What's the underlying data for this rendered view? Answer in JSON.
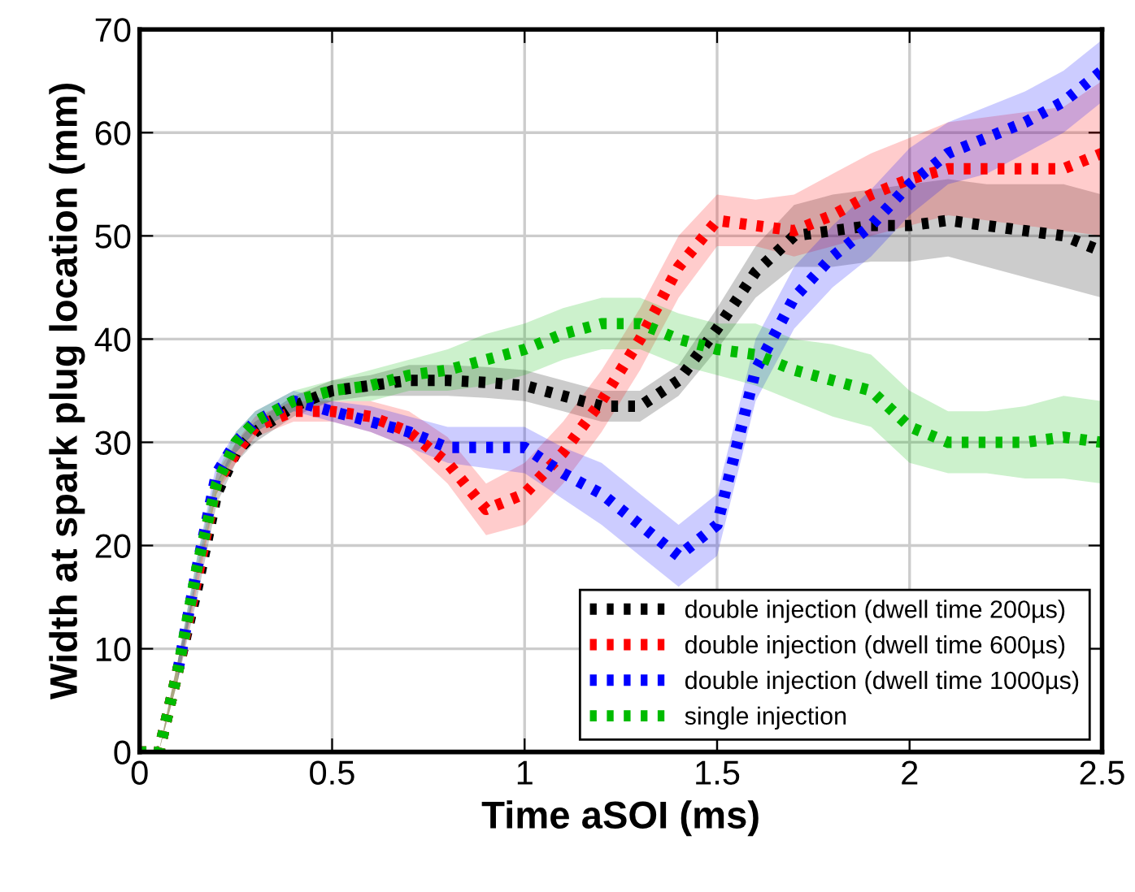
{
  "chart_data": {
    "type": "line",
    "xlabel": "Time aSOI (ms)",
    "ylabel": "Width at spark plug location (mm)",
    "x": [
      0,
      0.05,
      0.1,
      0.15,
      0.2,
      0.25,
      0.3,
      0.4,
      0.5,
      0.6,
      0.7,
      0.8,
      0.9,
      1.0,
      1.1,
      1.2,
      1.3,
      1.4,
      1.5,
      1.6,
      1.7,
      1.8,
      1.9,
      2.0,
      2.1,
      2.2,
      2.3,
      2.4,
      2.5
    ],
    "series": [
      {
        "name": "double injection (dwell time 200µs)",
        "color": "#000000",
        "values": [
          0,
          0,
          8,
          16,
          25,
          29,
          31,
          33.5,
          35,
          35.5,
          36,
          36,
          35.8,
          35.5,
          34.5,
          33.5,
          33.5,
          36,
          41,
          46.5,
          50,
          50.5,
          51,
          51,
          51.5,
          51,
          50.5,
          50,
          48.5
        ],
        "lower": [
          0,
          0,
          7,
          15,
          24,
          28,
          30,
          32.5,
          34,
          34.5,
          34.5,
          34.5,
          34.3,
          34,
          33,
          32,
          32,
          34.5,
          39,
          44,
          47,
          47,
          47.5,
          47.5,
          48,
          47,
          46,
          45,
          44
        ],
        "upper": [
          0,
          0,
          9,
          17,
          26,
          30,
          32,
          34.5,
          36,
          36.5,
          37.5,
          37.5,
          37.3,
          37,
          36,
          35,
          35,
          37.5,
          43,
          49,
          53,
          54,
          54.5,
          55,
          55.5,
          55,
          55,
          55,
          54
        ]
      },
      {
        "name": "double injection (dwell time 600µs)",
        "color": "#ff0000",
        "values": [
          0,
          0,
          8,
          17,
          26,
          29,
          31.5,
          33,
          33,
          32.5,
          31,
          28,
          23.5,
          25,
          29,
          34,
          40,
          47,
          51.5,
          51,
          50.5,
          52,
          54,
          55.5,
          56.5,
          56.5,
          56.5,
          56.5,
          58
        ],
        "lower": [
          0,
          0,
          7,
          16,
          25,
          28,
          30.5,
          32,
          32,
          31,
          29.5,
          26,
          21,
          22,
          26,
          31,
          37,
          44,
          49,
          49,
          48,
          49,
          50,
          51,
          52,
          51.5,
          51,
          50.5,
          50
        ],
        "upper": [
          0,
          0,
          9,
          18,
          27,
          30,
          32.5,
          34,
          34,
          34,
          33,
          30.5,
          26,
          28,
          32,
          37,
          43,
          50,
          54,
          53.5,
          54,
          56,
          58,
          59.5,
          61,
          61.5,
          62,
          62.5,
          65
        ]
      },
      {
        "name": "double injection (dwell time 1000µs)",
        "color": "#0000ff",
        "values": [
          null,
          null,
          8,
          18,
          27,
          30,
          32,
          34,
          33,
          32,
          31,
          29.5,
          29.5,
          29.5,
          27,
          25,
          22,
          19,
          22,
          37,
          44,
          48,
          51,
          55,
          58,
          59.5,
          61,
          63,
          66
        ],
        "lower": [
          null,
          null,
          7,
          17,
          26,
          29,
          31,
          33,
          32,
          31,
          29.5,
          28,
          27.5,
          27,
          24.5,
          22,
          19,
          16,
          19,
          34,
          41,
          45,
          48,
          52,
          55,
          56,
          58,
          60,
          63
        ],
        "upper": [
          null,
          null,
          9,
          19,
          28,
          31,
          33,
          35,
          34,
          33.5,
          32.5,
          31.5,
          31.5,
          31.5,
          29.5,
          28,
          25,
          22,
          25,
          40,
          47,
          51,
          54.5,
          58.5,
          61,
          62.5,
          64,
          66,
          69
        ]
      },
      {
        "name": "single injection",
        "color": "#00bb00",
        "values": [
          0,
          0,
          8,
          18,
          26,
          30,
          32,
          34,
          35,
          35.5,
          36.5,
          37,
          38,
          39,
          40.5,
          41.5,
          41.5,
          40,
          39,
          38.5,
          37,
          36,
          35,
          31.5,
          30,
          30,
          30,
          30.5,
          30
        ],
        "lower": [
          0,
          0,
          7,
          17,
          25,
          29,
          31,
          33,
          34,
          34,
          35,
          35,
          35.5,
          36.5,
          38,
          39,
          39,
          37.5,
          36.5,
          35.5,
          34,
          32.5,
          31.5,
          28,
          27,
          27,
          26.5,
          26.5,
          26
        ],
        "upper": [
          0,
          0,
          9,
          19,
          27,
          31,
          33,
          35,
          36,
          37,
          38,
          39,
          40.5,
          41.5,
          43,
          44,
          44,
          42.5,
          41.5,
          41.5,
          40,
          39.5,
          38.5,
          35,
          33,
          33,
          33.5,
          34.5,
          34
        ]
      }
    ],
    "xlim": [
      0,
      2.5
    ],
    "ylim": [
      0,
      70
    ],
    "xticks": [
      0,
      0.5,
      1,
      1.5,
      2,
      2.5
    ],
    "yticks": [
      0,
      10,
      20,
      30,
      40,
      50,
      60,
      70
    ],
    "grid": true,
    "legend": "bottom right",
    "line_style": "dotted",
    "marker": "none"
  }
}
